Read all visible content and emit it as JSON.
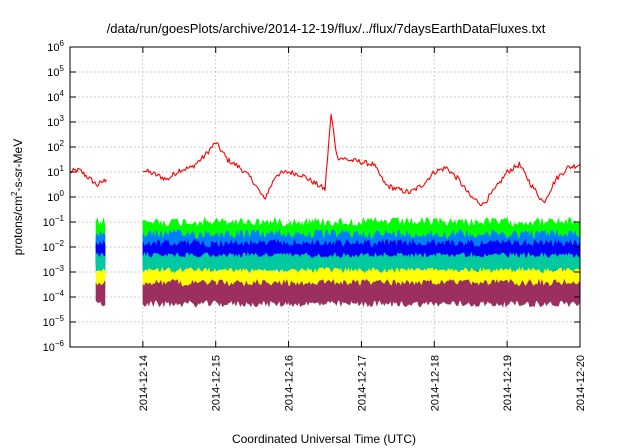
{
  "chart_data": {
    "type": "line",
    "title": "/data/run/goesPlots/archive/2014-12-19/flux/../flux/7daysEarthDataFluxes.txt",
    "xlabel": "Coordinated Universal Time (UTC)",
    "ylabel_base": "protons/cm",
    "ylabel_sup": "2",
    "ylabel_rest": "-s-sr-MeV",
    "yscale": "log",
    "xlim": [
      "2014-12-13",
      "2014-12-20"
    ],
    "ylim_exponents": [
      -6,
      6
    ],
    "x_ticks": [
      "2014-12-14",
      "2014-12-15",
      "2014-12-16",
      "2014-12-17",
      "2014-12-18",
      "2014-12-19",
      "2014-12-20"
    ],
    "y_tick_exponents": [
      -6,
      -5,
      -4,
      -3,
      -2,
      -1,
      0,
      1,
      2,
      3,
      4,
      5,
      6
    ],
    "y_tick_base": "10",
    "grid": true,
    "data_gap": [
      "2014-12-13T12:00",
      "2014-12-14T00:00"
    ],
    "series": [
      {
        "color": "#ff0000",
        "x": [
          "2014-12-13T00:00",
          "2014-12-13T03:00",
          "2014-12-13T06:00",
          "2014-12-13T09:00",
          "2014-12-13T12:00",
          "2014-12-14T00:00",
          "2014-12-14T04:00",
          "2014-12-14T08:00",
          "2014-12-14T12:00",
          "2014-12-14T16:00",
          "2014-12-14T20:00",
          "2014-12-15T00:00",
          "2014-12-15T04:00",
          "2014-12-15T08:00",
          "2014-12-15T12:00",
          "2014-12-15T16:00",
          "2014-12-15T20:00",
          "2014-12-16T00:00",
          "2014-12-16T04:00",
          "2014-12-16T08:00",
          "2014-12-16T12:00",
          "2014-12-16T14:00",
          "2014-12-16T16:00",
          "2014-12-16T20:00",
          "2014-12-17T00:00",
          "2014-12-17T04:00",
          "2014-12-17T08:00",
          "2014-12-17T12:00",
          "2014-12-17T16:00",
          "2014-12-17T20:00",
          "2014-12-18T00:00",
          "2014-12-18T04:00",
          "2014-12-18T08:00",
          "2014-12-18T12:00",
          "2014-12-18T16:00",
          "2014-12-18T20:00",
          "2014-12-19T00:00",
          "2014-12-19T04:00",
          "2014-12-19T08:00",
          "2014-12-19T12:00",
          "2014-12-19T16:00",
          "2014-12-19T20:00",
          "2014-12-20T00:00"
        ],
        "values": [
          10,
          12,
          6,
          3,
          5,
          12,
          8,
          5,
          12,
          15,
          40,
          150,
          30,
          15,
          5,
          0.8,
          8,
          10,
          8,
          4,
          2,
          2000,
          40,
          30,
          25,
          20,
          3,
          2,
          1.5,
          3,
          10,
          15,
          5,
          1,
          0.5,
          2,
          10,
          20,
          3,
          0.6,
          5,
          15,
          20
        ]
      },
      {
        "color": "#00ff00",
        "band": [
          0.005,
          0.15
        ]
      },
      {
        "color": "#0080ff",
        "band": [
          0.0015,
          0.05
        ]
      },
      {
        "color": "#0000ff",
        "band": [
          0.001,
          0.02
        ]
      },
      {
        "color": "#00c8a0",
        "band": [
          0.0008,
          0.006
        ]
      },
      {
        "color": "#ffff00",
        "band": [
          0.00015,
          0.0015
        ]
      },
      {
        "color": "#9b3060",
        "band": [
          4e-05,
          0.0005
        ]
      }
    ]
  }
}
